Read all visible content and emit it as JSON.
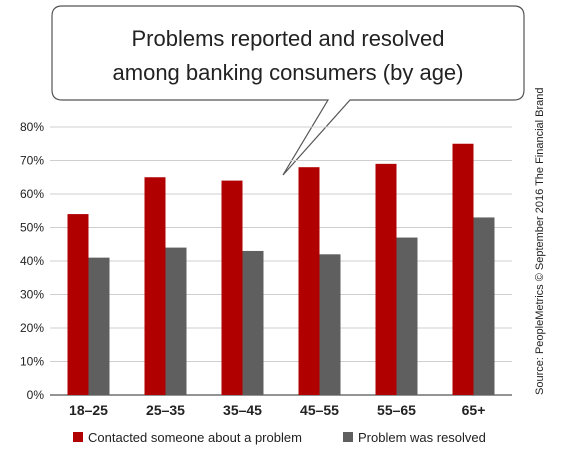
{
  "chart_data": {
    "type": "bar",
    "title_line1": "Problems reported and resolved",
    "title_line2": "among banking consumers (by age)",
    "categories": [
      "18–25",
      "25–35",
      "35–45",
      "45–55",
      "55–65",
      "65+"
    ],
    "series": [
      {
        "name": "Contacted someone about a problem",
        "color": "#b00000",
        "values": [
          54,
          65,
          64,
          68,
          69,
          75
        ]
      },
      {
        "name": "Problem was resolved",
        "color": "#5f5f5f",
        "values": [
          41,
          44,
          43,
          42,
          47,
          53
        ]
      }
    ],
    "ylim": [
      0,
      80
    ],
    "yticks": [
      "0%",
      "10%",
      "20%",
      "30%",
      "40%",
      "50%",
      "60%",
      "70%",
      "80%"
    ],
    "grid": true,
    "legend_position": "bottom",
    "source": "Source: PeopleMetrics © September 2016 The Financial Brand"
  }
}
